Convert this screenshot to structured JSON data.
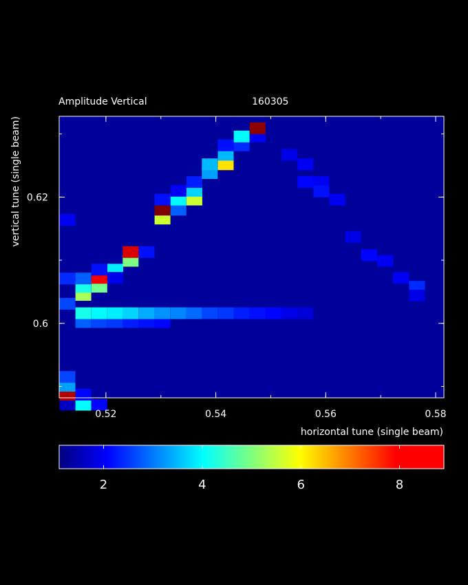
{
  "chart_data": {
    "type": "heatmap",
    "title": "Amplitude Vertical",
    "run_id": "160305",
    "xlabel": "horizontal tune (single beam)",
    "ylabel": "vertical tune (single beam)",
    "xlim": [
      0.5115,
      0.5815
    ],
    "ylim": [
      0.5882,
      0.6328
    ],
    "x_ticks": [
      0.52,
      0.54,
      0.56,
      0.58
    ],
    "x_tick_labels": [
      "0.52",
      "0.54",
      "0.56",
      "0.58"
    ],
    "y_ticks": [
      0.6,
      0.62
    ],
    "y_tick_labels": [
      "0.6",
      "0.62"
    ],
    "colorbar_range": [
      1.1,
      8.9
    ],
    "colorbar_ticks": [
      2,
      4,
      6,
      8
    ],
    "colorbar_tick_labels": [
      "2",
      "4",
      "6",
      "8"
    ],
    "colormap": "jet",
    "background_value": 1.3,
    "cells": [
      [
        0.513,
        0.5871,
        1.6
      ],
      [
        0.513,
        0.5887,
        8.5
      ],
      [
        0.513,
        0.5901,
        3.3
      ],
      [
        0.513,
        0.5915,
        2.6
      ],
      [
        0.513,
        0.6031,
        2.6
      ],
      [
        0.513,
        0.6071,
        2.4
      ],
      [
        0.513,
        0.6164,
        2.0
      ],
      [
        0.5159,
        0.5871,
        4.0
      ],
      [
        0.5159,
        0.5887,
        2.1
      ],
      [
        0.5159,
        0.6002,
        2.8
      ],
      [
        0.5159,
        0.6016,
        4.2
      ],
      [
        0.5159,
        0.6045,
        5.3
      ],
      [
        0.5159,
        0.6058,
        4.2
      ],
      [
        0.5159,
        0.6071,
        2.8
      ],
      [
        0.5188,
        0.5871,
        2.1
      ],
      [
        0.5188,
        0.6002,
        2.6
      ],
      [
        0.5188,
        0.6016,
        4.0
      ],
      [
        0.5188,
        0.6058,
        4.9
      ],
      [
        0.5188,
        0.6072,
        8.0
      ],
      [
        0.5188,
        0.6085,
        2.2
      ],
      [
        0.5217,
        0.6002,
        2.5
      ],
      [
        0.5217,
        0.6016,
        3.9
      ],
      [
        0.5217,
        0.6085,
        3.9
      ],
      [
        0.5217,
        0.6072,
        1.9
      ],
      [
        0.5245,
        0.6002,
        2.3
      ],
      [
        0.5245,
        0.6016,
        3.7
      ],
      [
        0.5245,
        0.6099,
        5.0
      ],
      [
        0.5245,
        0.6113,
        8.2
      ],
      [
        0.5274,
        0.6002,
        2.2
      ],
      [
        0.5274,
        0.6016,
        3.4
      ],
      [
        0.5274,
        0.6113,
        2.2
      ],
      [
        0.5303,
        0.6002,
        2.1
      ],
      [
        0.5303,
        0.6016,
        3.2
      ],
      [
        0.5303,
        0.6166,
        5.6
      ],
      [
        0.5303,
        0.618,
        8.9
      ],
      [
        0.5303,
        0.6196,
        2.2
      ],
      [
        0.5332,
        0.6016,
        3.1
      ],
      [
        0.5332,
        0.618,
        2.8
      ],
      [
        0.5332,
        0.6196,
        4.0
      ],
      [
        0.5332,
        0.621,
        2.0
      ],
      [
        0.5361,
        0.6016,
        2.9
      ],
      [
        0.5361,
        0.6196,
        5.6
      ],
      [
        0.5361,
        0.621,
        3.7
      ],
      [
        0.5361,
        0.6224,
        2.3
      ],
      [
        0.5389,
        0.6016,
        2.6
      ],
      [
        0.5389,
        0.6238,
        3.3
      ],
      [
        0.5389,
        0.6252,
        3.5
      ],
      [
        0.5418,
        0.6016,
        2.5
      ],
      [
        0.5418,
        0.6252,
        6.2
      ],
      [
        0.5418,
        0.6267,
        3.5
      ],
      [
        0.5418,
        0.6282,
        2.2
      ],
      [
        0.5447,
        0.6016,
        2.3
      ],
      [
        0.5447,
        0.6282,
        2.4
      ],
      [
        0.5447,
        0.6296,
        4.0
      ],
      [
        0.5476,
        0.6016,
        2.2
      ],
      [
        0.5476,
        0.6296,
        2.0
      ],
      [
        0.5476,
        0.6309,
        8.8
      ],
      [
        0.5505,
        0.6016,
        2.1
      ],
      [
        0.5534,
        0.6016,
        1.9
      ],
      [
        0.5534,
        0.6267,
        1.9
      ],
      [
        0.5563,
        0.6016,
        1.8
      ],
      [
        0.5563,
        0.6252,
        2.0
      ],
      [
        0.5563,
        0.6224,
        2.1
      ],
      [
        0.5592,
        0.6224,
        2.0
      ],
      [
        0.5592,
        0.6209,
        2.2
      ],
      [
        0.5621,
        0.6196,
        2.0
      ],
      [
        0.565,
        0.6137,
        1.9
      ],
      [
        0.5679,
        0.6108,
        2.1
      ],
      [
        0.5708,
        0.6099,
        2.0
      ],
      [
        0.5737,
        0.6072,
        2.0
      ],
      [
        0.5766,
        0.6058,
        2.4
      ],
      [
        0.5766,
        0.6044,
        1.9
      ]
    ]
  }
}
